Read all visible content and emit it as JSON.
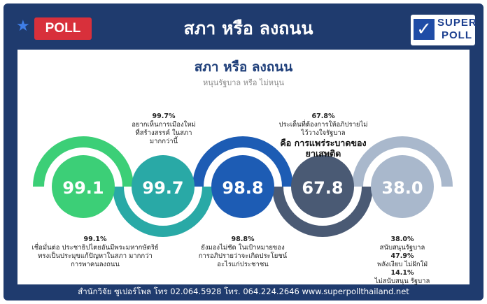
{
  "header": {
    "badge": "POLL",
    "title": "สภา หรือ ลงถนน",
    "logo_line1": "SUPER",
    "logo_line2": "POLL"
  },
  "content": {
    "title": "สภา หรือ ลงถนน",
    "subtitle": "หนุนรัฐบาล หรือ ไม่หนุน"
  },
  "circles": [
    {
      "value": "99.1",
      "color": "#3ccf77"
    },
    {
      "value": "99.7",
      "color": "#29a9a6"
    },
    {
      "value": "98.8",
      "color": "#1d5cb4"
    },
    {
      "value": "67.8",
      "color": "#4a5a74"
    },
    {
      "value": "38.0",
      "color": "#a9b8cc"
    }
  ],
  "annotations": {
    "a1_pct": "99.1%",
    "a1_l1": "เชื่อมั่นต่อ ประชาธิปไตยอันมีพระมหากษัตริย์",
    "a1_l2": "ทรงเป็นประมุขแก้ปัญหาในสภา มากกว่า",
    "a1_l3": "การพาคนลงถนน",
    "a2_pct": "99.7%",
    "a2_l1": "อยากเห็นการเมืองใหม่",
    "a2_l2": "ที่สร้างสรรค์ ในสภา",
    "a2_l3": "มากกว่านี้",
    "a3_pct": "98.8%",
    "a3_l1": "ยังมองไม่ชัด ในเป้าหมายของ",
    "a3_l2": "การอภิปรายว่าจะเกิดประโยชน์",
    "a3_l3": "อะไรแก่ประชาชน",
    "a4_pct": "67.8%",
    "a4_l1": "ประเด็นที่ต้องการให้อภิปรายไม่",
    "a4_l2": "ไว้วางใจรัฐบาล",
    "a4_big1": "คือ การแพร่ระบาดของ",
    "a4_big2": "ยาเสพติด",
    "a5_pct1": "38.0%",
    "a5_l1": "สนับสนุนรัฐบาล",
    "a5_pct2": "47.9%",
    "a5_l2": "พลังเงียบ ไม่ฝักใฝ่",
    "a5_pct3": "14.1%",
    "a5_l3": "ไม่สนับสนุน รัฐบาล"
  },
  "footer": "สำนักวิจัย ซูเปอร์โพล โทร 02.064.5928  โทร. 064.224.2646 www.superpollthailand.net"
}
